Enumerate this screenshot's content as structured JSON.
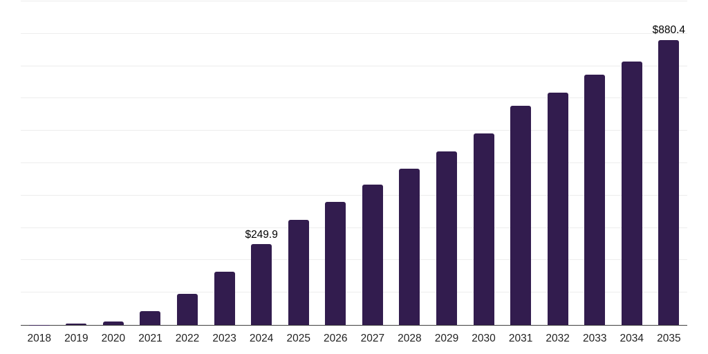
{
  "chart": {
    "background": "#ffffff",
    "bar_color": "#321C4E",
    "gridline_color": "#ededed",
    "axis_line_color": "#3f3f3f",
    "tick_label_color": "#222222",
    "value_label_color": "#000000"
  },
  "chart_data": {
    "type": "bar",
    "title": "",
    "xlabel": "",
    "ylabel": "",
    "categories": [
      "2018",
      "2019",
      "2020",
      "2021",
      "2022",
      "2023",
      "2024",
      "2025",
      "2026",
      "2027",
      "2028",
      "2029",
      "2030",
      "2031",
      "2032",
      "2033",
      "2034",
      "2035"
    ],
    "values": [
      1,
      4,
      11,
      43,
      96,
      164,
      249.9,
      324,
      381,
      434,
      484,
      536,
      591,
      677,
      719,
      774,
      815,
      880.4
    ],
    "value_labels": [
      "",
      "",
      "",
      "",
      "",
      "",
      "$249.9",
      "",
      "",
      "",
      "",
      "",
      "",
      "",
      "",
      "",
      "",
      "$880.4"
    ],
    "ylim": [
      0,
      1000
    ],
    "gridline_step": 100,
    "grid": "horizontal",
    "yticks_shown": false,
    "legend": "none"
  }
}
